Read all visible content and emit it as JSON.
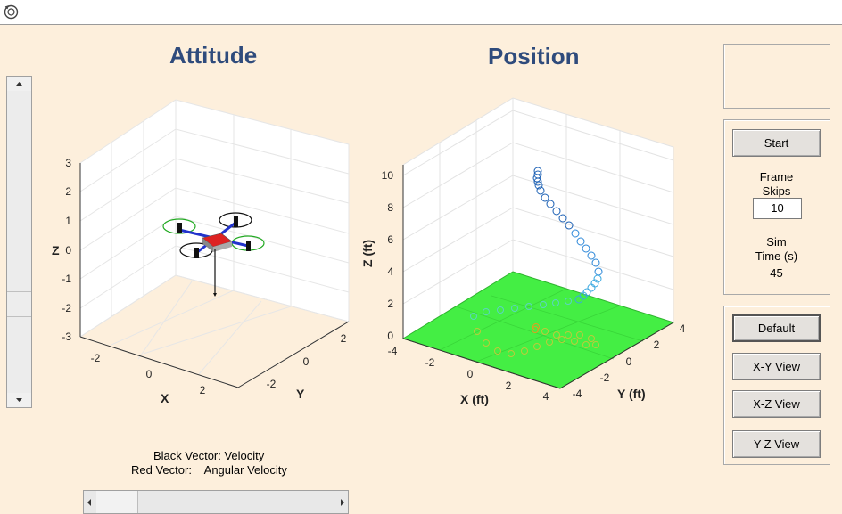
{
  "attitude": {
    "title": "Attitude",
    "x_label": "X",
    "y_label": "Y",
    "z_label": "Z",
    "z_ticks": [
      "3",
      "2",
      "1",
      "0",
      "-1",
      "-2",
      "-3"
    ],
    "x_ticks": [
      "-2",
      "0",
      "2"
    ],
    "y_ticks": [
      "-2",
      "0",
      "2"
    ]
  },
  "position": {
    "title": "Position",
    "x_label": "X (ft)",
    "y_label": "Y (ft)",
    "z_label": "Z (ft)",
    "z_ticks": [
      "10",
      "8",
      "6",
      "4",
      "2",
      "0"
    ],
    "x_ticks": [
      "-4",
      "-2",
      "0",
      "2",
      "4"
    ],
    "y_ticks": [
      "4",
      "2",
      "0",
      "-2",
      "-4"
    ]
  },
  "legend": {
    "line1": "Black Vector: Velocity",
    "line2": "Red Vector:    Angular Velocity"
  },
  "controls": {
    "start_label": "Start",
    "frame_skips_label": "Frame\nSkips",
    "frame_skips_value": "10",
    "sim_time_label": "Sim\nTime (s)",
    "sim_time_value": "45",
    "default_label": "Default",
    "xy_label": "X-Y View",
    "xz_label": "X-Z View",
    "yz_label": "Y-Z View"
  },
  "colors": {
    "title": "#2f4b7c",
    "ground": "#44ee44",
    "body": "#dd2222",
    "arm": "#2233cc",
    "rotor_green": "#22aa22"
  },
  "icons": {
    "app": "matlab-figure-icon"
  }
}
